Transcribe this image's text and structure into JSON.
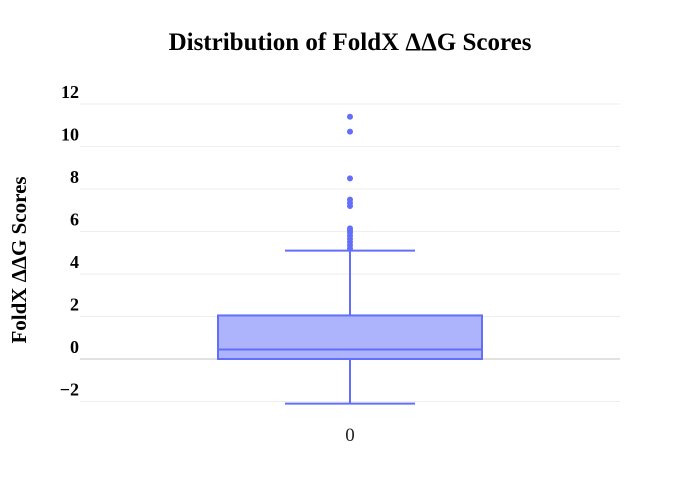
{
  "chart_data": {
    "type": "box",
    "title": "Distribution of FoldX ΔΔG Scores",
    "ylabel": "FoldX ΔΔG Scores",
    "xlabel": "",
    "categories": [
      "0"
    ],
    "ylim": [
      -3,
      12.5
    ],
    "yticks": [
      -2,
      0,
      2,
      4,
      6,
      8,
      10,
      12
    ],
    "ytick_labels": [
      "−2",
      "0",
      "2",
      "4",
      "6",
      "8",
      "10",
      "12"
    ],
    "grid": true,
    "series": [
      {
        "category": "0",
        "min": -2.1,
        "q1": 0.0,
        "median": 0.45,
        "q3": 2.05,
        "max": 5.1,
        "outliers": [
          5.2,
          5.35,
          5.5,
          5.65,
          5.8,
          5.95,
          6.05,
          6.15,
          7.2,
          7.35,
          7.5,
          8.5,
          10.7,
          11.4
        ]
      }
    ],
    "colors": {
      "box_fill": "#aeb4fb",
      "box_stroke": "#636efa",
      "outlier": "#636efa"
    }
  }
}
